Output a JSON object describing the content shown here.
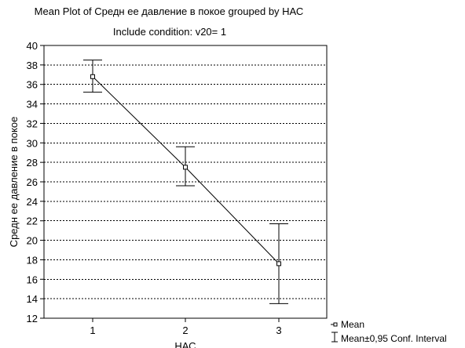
{
  "chart_data": {
    "type": "line",
    "title": "Mean Plot of Средн ее давление в покое grouped by  НАС",
    "subtitle": "Include condition:  v20= 1",
    "xlabel": "НАС",
    "ylabel": "Средн ее давление в покое",
    "categories": [
      "1",
      "2",
      "3"
    ],
    "ylim": [
      12,
      40
    ],
    "yticks": [
      12,
      14,
      16,
      18,
      20,
      22,
      24,
      26,
      28,
      30,
      32,
      34,
      36,
      38,
      40
    ],
    "grid": true,
    "legend_position": "bottom-right",
    "series": [
      {
        "name": "Mean",
        "values": [
          36.8,
          27.5,
          17.6
        ],
        "ci_lower": [
          35.2,
          25.6,
          13.5
        ],
        "ci_upper": [
          38.5,
          29.6,
          21.7
        ]
      }
    ],
    "legend": {
      "mean_label": "Mean",
      "ci_label": "Mean±0,95 Conf. Interval"
    }
  }
}
